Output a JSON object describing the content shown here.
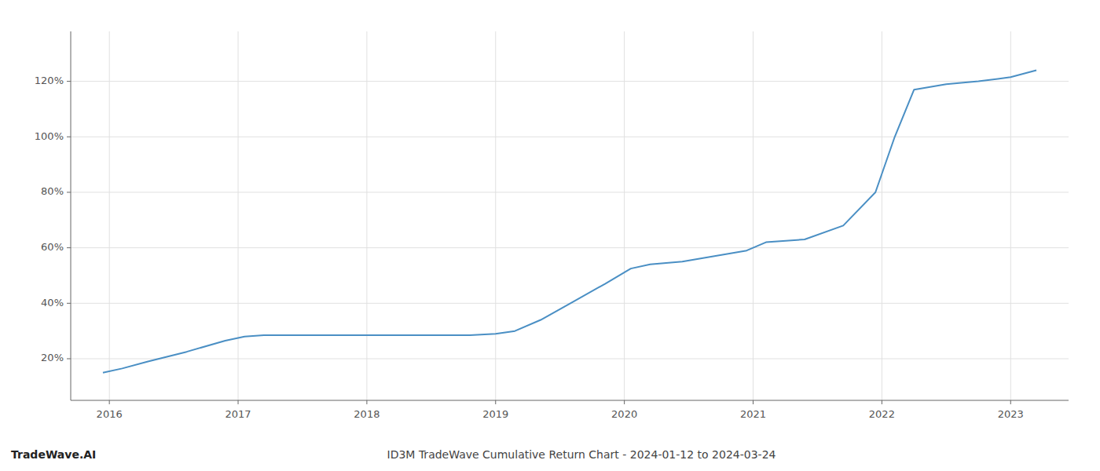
{
  "chart_data": {
    "type": "line",
    "title": "ID3M TradeWave Cumulative Return Chart - 2024-01-12 to 2024-03-24",
    "annotations": [
      "TradeWave.AI"
    ],
    "color": "#4a8fc4",
    "x": [
      2015.95,
      2016.1,
      2016.3,
      2016.6,
      2016.9,
      2017.05,
      2017.2,
      2017.5,
      2017.8,
      2018.0,
      2018.2,
      2018.5,
      2018.8,
      2019.0,
      2019.15,
      2019.35,
      2019.6,
      2019.85,
      2020.05,
      2020.2,
      2020.45,
      2020.7,
      2020.95,
      2021.1,
      2021.4,
      2021.7,
      2021.95,
      2022.1,
      2022.25,
      2022.5,
      2022.75,
      2023.0,
      2023.2
    ],
    "values": [
      15.0,
      16.5,
      19.0,
      22.5,
      26.5,
      28.0,
      28.5,
      28.5,
      28.5,
      28.5,
      28.5,
      28.5,
      28.5,
      29.0,
      30.0,
      34.0,
      40.5,
      47.0,
      52.5,
      54.0,
      55.0,
      57.0,
      59.0,
      62.0,
      63.0,
      68.0,
      80.0,
      100.0,
      117.0,
      119.0,
      120.0,
      121.5,
      124.0
    ],
    "xlim": [
      2015.7,
      2023.45
    ],
    "ylim": [
      5,
      138
    ],
    "xticks": [
      2016,
      2017,
      2018,
      2019,
      2020,
      2021,
      2022,
      2023
    ],
    "yticks": [
      {
        "value": 20,
        "label": "20%"
      },
      {
        "value": 40,
        "label": "40%"
      },
      {
        "value": 60,
        "label": "60%"
      },
      {
        "value": 80,
        "label": "80%"
      },
      {
        "value": 100,
        "label": "100%"
      },
      {
        "value": 120,
        "label": "120%"
      }
    ],
    "grid": true
  }
}
